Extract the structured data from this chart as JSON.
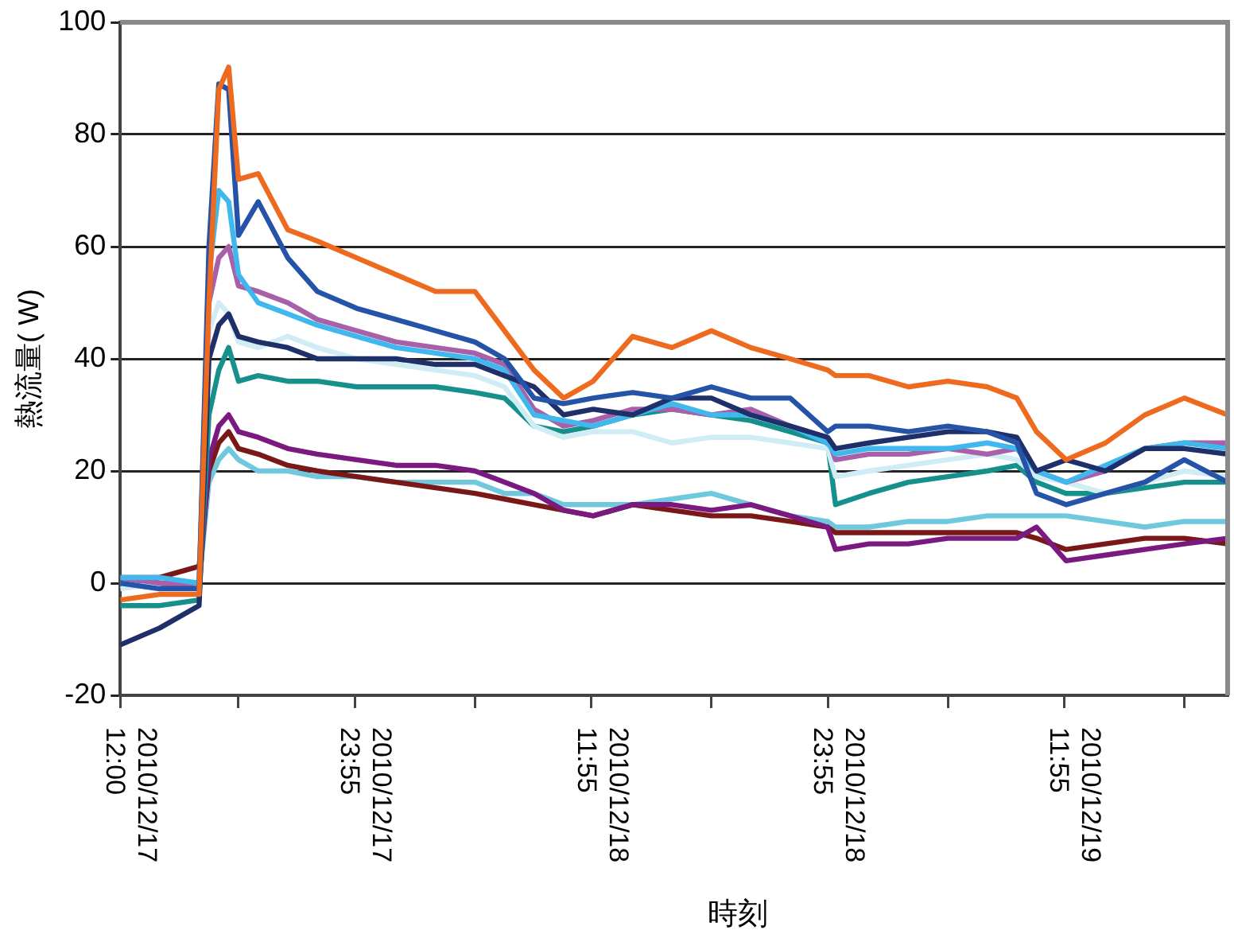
{
  "chart_data": {
    "type": "line",
    "ylabel": "熱流量( W)",
    "xlabel": "時刻",
    "x": [
      "2010-12-17T12:00",
      "2010-12-17T14:00",
      "2010-12-17T16:00",
      "2010-12-17T16:30",
      "2010-12-17T17:00",
      "2010-12-17T17:30",
      "2010-12-17T18:00",
      "2010-12-17T19:00",
      "2010-12-17T20:30",
      "2010-12-17T22:00",
      "2010-12-18T00:00",
      "2010-12-18T02:00",
      "2010-12-18T04:00",
      "2010-12-18T06:00",
      "2010-12-18T07:30",
      "2010-12-18T09:00",
      "2010-12-18T10:30",
      "2010-12-18T12:00",
      "2010-12-18T14:00",
      "2010-12-18T16:00",
      "2010-12-18T18:00",
      "2010-12-18T20:00",
      "2010-12-18T22:00",
      "2010-12-18T23:54",
      "2010-12-19T00:18",
      "2010-12-19T02:00",
      "2010-12-19T04:00",
      "2010-12-19T06:00",
      "2010-12-19T08:00",
      "2010-12-19T09:30",
      "2010-12-19T10:30",
      "2010-12-19T12:00",
      "2010-12-19T14:00",
      "2010-12-19T16:00",
      "2010-12-19T18:00",
      "2010-12-19T20:12"
    ],
    "series": [
      {
        "color": "#ee6a1e",
        "values": [
          -3,
          -2,
          -2,
          50,
          88,
          92,
          72,
          73,
          63,
          61,
          58,
          55,
          52,
          52,
          45,
          38,
          33,
          36,
          44,
          42,
          45,
          42,
          40,
          38,
          37,
          37,
          35,
          36,
          35,
          33,
          27,
          22,
          25,
          30,
          33,
          30
        ]
      },
      {
        "color": "#2553a8",
        "values": [
          0,
          -1,
          -1,
          60,
          89,
          88,
          62,
          68,
          58,
          52,
          49,
          47,
          45,
          43,
          40,
          33,
          32,
          33,
          34,
          33,
          35,
          33,
          33,
          27,
          28,
          28,
          27,
          28,
          27,
          25,
          16,
          14,
          16,
          18,
          22,
          18
        ]
      },
      {
        "color": "#1f2f6a",
        "values": [
          -11,
          -8,
          -4,
          40,
          46,
          48,
          44,
          43,
          42,
          40,
          40,
          40,
          39,
          39,
          37,
          35,
          30,
          31,
          30,
          33,
          33,
          30,
          28,
          26,
          24,
          25,
          26,
          27,
          27,
          26,
          20,
          22,
          20,
          24,
          24,
          23
        ]
      },
      {
        "color": "#40b8ee",
        "values": [
          1,
          1,
          0,
          55,
          70,
          68,
          55,
          50,
          48,
          46,
          44,
          42,
          41,
          40,
          38,
          30,
          29,
          28,
          30,
          32,
          30,
          30,
          28,
          25,
          23,
          24,
          24,
          24,
          25,
          24,
          20,
          18,
          21,
          24,
          25,
          24
        ]
      },
      {
        "color": "#a860a8",
        "values": [
          1,
          0,
          0,
          50,
          58,
          60,
          53,
          52,
          50,
          47,
          45,
          43,
          42,
          41,
          39,
          31,
          28,
          29,
          31,
          31,
          30,
          31,
          28,
          26,
          22,
          23,
          23,
          24,
          23,
          24,
          20,
          18,
          20,
          24,
          25,
          25
        ]
      },
      {
        "color": "#d0ecf4",
        "values": [
          -1,
          0,
          0,
          45,
          50,
          48,
          43,
          42,
          44,
          42,
          40,
          39,
          38,
          37,
          35,
          28,
          26,
          27,
          27,
          25,
          26,
          26,
          25,
          24,
          19,
          20,
          21,
          22,
          23,
          22,
          19,
          18,
          16,
          18,
          20,
          19
        ]
      },
      {
        "color": "#16908a",
        "values": [
          -4,
          -4,
          -3,
          30,
          38,
          42,
          36,
          37,
          36,
          36,
          35,
          35,
          35,
          34,
          33,
          28,
          27,
          28,
          30,
          31,
          30,
          29,
          27,
          25,
          14,
          16,
          18,
          19,
          20,
          21,
          18,
          16,
          16,
          17,
          18,
          18
        ]
      },
      {
        "color": "#7a1a80",
        "values": [
          1,
          0,
          -1,
          22,
          28,
          30,
          27,
          26,
          24,
          23,
          22,
          21,
          21,
          20,
          18,
          16,
          13,
          12,
          14,
          14,
          13,
          14,
          12,
          10,
          6,
          7,
          7,
          8,
          8,
          8,
          10,
          4,
          5,
          6,
          7,
          8
        ]
      },
      {
        "color": "#7a1818",
        "values": [
          1,
          1,
          3,
          20,
          25,
          27,
          24,
          23,
          21,
          20,
          19,
          18,
          17,
          16,
          15,
          14,
          13,
          12,
          14,
          13,
          12,
          12,
          11,
          10,
          9,
          9,
          9,
          9,
          9,
          9,
          8,
          6,
          7,
          8,
          8,
          7
        ]
      },
      {
        "color": "#70c8dc",
        "values": [
          0,
          0,
          0,
          18,
          22,
          24,
          22,
          20,
          20,
          19,
          19,
          18,
          18,
          18,
          16,
          16,
          14,
          14,
          14,
          15,
          16,
          14,
          12,
          11,
          10,
          10,
          11,
          11,
          12,
          12,
          12,
          12,
          11,
          10,
          11,
          11
        ]
      }
    ],
    "xlim": [
      "2010-12-17T12:00",
      "2010-12-19T20:12"
    ],
    "ylim": [
      -20,
      100
    ],
    "xticks": [
      {
        "value": "2010-12-17T12:00",
        "label": "2010/12/17 12:00"
      },
      {
        "value": "2010-12-17T18:00",
        "label": null
      },
      {
        "value": "2010-12-17T23:55",
        "label": "2010/12/17 23:55"
      },
      {
        "value": "2010-12-18T06:00",
        "label": null
      },
      {
        "value": "2010-12-18T11:55",
        "label": "2010/12/18 11:55"
      },
      {
        "value": "2010-12-18T18:00",
        "label": null
      },
      {
        "value": "2010-12-18T23:55",
        "label": "2010/12/18 23:55"
      },
      {
        "value": "2010-12-19T06:00",
        "label": null
      },
      {
        "value": "2010-12-19T11:55",
        "label": "2010/12/19 11:55"
      },
      {
        "value": "2010-12-19T18:00",
        "label": null
      }
    ],
    "yticks": [
      -20,
      0,
      20,
      40,
      60,
      80,
      100
    ],
    "grid": "y",
    "legend": false,
    "marker": "none",
    "line_style": "solid"
  }
}
